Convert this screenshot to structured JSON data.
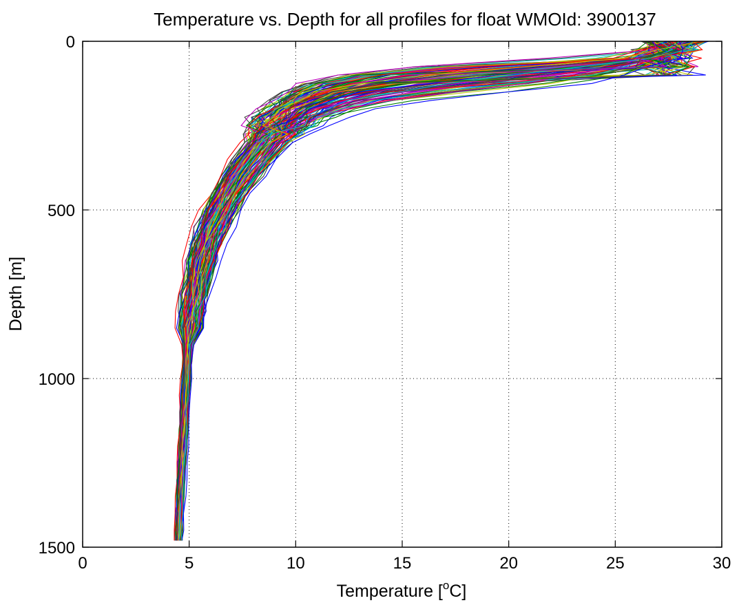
{
  "chart_data": {
    "type": "line",
    "title": "Temperature vs. Depth for all profiles for float WMOId: 3900137",
    "xlabel": {
      "prefix": "Temperature [",
      "superscript": "o",
      "suffix": "C]"
    },
    "ylabel": "Depth [m]",
    "xlim": [
      0,
      30
    ],
    "ylim": [
      0,
      1500
    ],
    "y_reversed": true,
    "x_ticks": [
      0,
      5,
      10,
      15,
      20,
      25,
      30
    ],
    "y_ticks": [
      0,
      500,
      1000,
      1500
    ],
    "x_tick_labels": [
      "0",
      "5",
      "10",
      "15",
      "20",
      "25",
      "30"
    ],
    "y_tick_labels": [
      "0",
      "500",
      "1000",
      "1500"
    ],
    "grid": true,
    "grid_style": "dotted",
    "legend": false,
    "profile_count": 140,
    "line_colors": [
      "#0000ff",
      "#008000",
      "#ff0000",
      "#00bfbf",
      "#bf00bf",
      "#bfbf00",
      "#404040"
    ],
    "representative_profiles": {
      "depth": [
        0,
        25,
        50,
        75,
        100,
        125,
        150,
        175,
        200,
        225,
        250,
        275,
        300,
        350,
        400,
        450,
        500,
        550,
        600,
        650,
        700,
        750,
        800,
        850,
        900,
        950,
        1000,
        1050,
        1100,
        1150,
        1200,
        1250,
        1300,
        1350,
        1400,
        1450,
        1480
      ],
      "series": [
        {
          "temperature": [
            27.5,
            27.3,
            26.0,
            21.5,
            16.0,
            13.0,
            11.5,
            10.7,
            10.0,
            9.5,
            9.1,
            8.8,
            8.5,
            7.9,
            7.3,
            6.8,
            6.4,
            6.0,
            5.8,
            5.6,
            5.4,
            5.2,
            5.1,
            5.0,
            4.95,
            4.9,
            4.85,
            4.8,
            4.8,
            4.75,
            4.7,
            4.65,
            4.6,
            4.6,
            4.55,
            4.5,
            4.5
          ]
        },
        {
          "temperature": [
            28.5,
            28.0,
            27.2,
            26.0,
            24.5,
            20.0,
            15.0,
            12.5,
            11.5,
            10.8,
            10.3,
            9.9,
            9.5,
            8.8,
            8.1,
            7.5,
            7.0,
            6.6,
            6.2,
            5.9,
            5.7,
            5.5,
            5.3,
            5.2,
            5.1,
            5.0,
            4.95,
            4.9,
            4.85,
            4.8,
            4.8,
            4.75,
            4.7,
            4.65,
            4.6,
            4.55,
            4.55
          ]
        },
        {
          "temperature": [
            26.5,
            26.4,
            25.0,
            18.0,
            13.5,
            11.5,
            10.3,
            9.6,
            9.0,
            8.6,
            8.3,
            8.0,
            7.8,
            7.2,
            6.7,
            6.3,
            5.9,
            5.6,
            5.4,
            5.2,
            5.1,
            5.0,
            4.9,
            4.85,
            4.8,
            4.8,
            4.75,
            4.7,
            4.7,
            4.65,
            4.6,
            4.6,
            4.55,
            4.5,
            4.5,
            4.45,
            4.45
          ]
        }
      ]
    }
  }
}
